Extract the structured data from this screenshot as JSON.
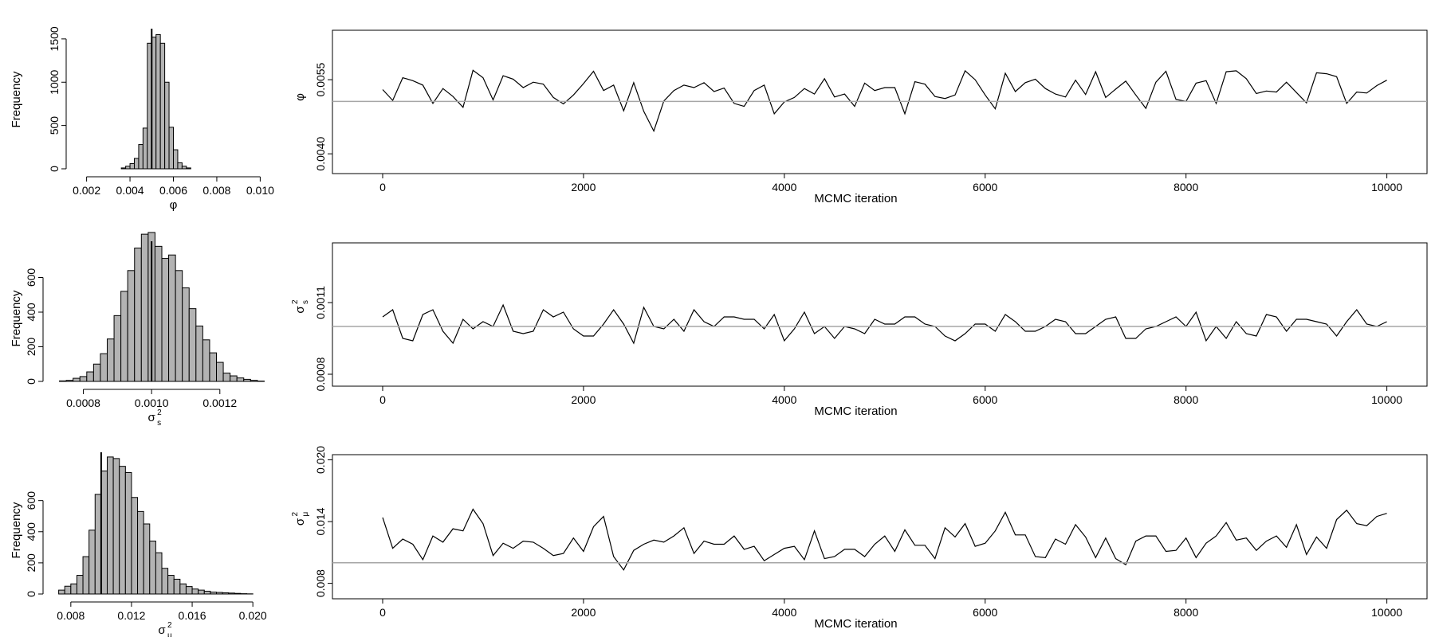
{
  "chart_data": [
    {
      "type": "bar",
      "kind": "histogram",
      "xlabel": "φ",
      "ylabel": "Frequency",
      "xlim": [
        0.0015,
        0.0105
      ],
      "ylim": [
        0,
        1600
      ],
      "xticks": [
        0.002,
        0.004,
        0.006,
        0.008,
        0.01
      ],
      "xtick_labels": [
        "0.002",
        "0.004",
        "0.006",
        "0.008",
        "0.010"
      ],
      "yticks": [
        0,
        500,
        1000,
        1500
      ],
      "ytick_labels": [
        "0",
        "500",
        "1000",
        "1500"
      ],
      "bin_edges": [
        0.0036,
        0.0038,
        0.004,
        0.0042,
        0.0044,
        0.0046,
        0.0048,
        0.005,
        0.0052,
        0.0054,
        0.0056,
        0.0058,
        0.006,
        0.0062,
        0.0064,
        0.0066,
        0.0068
      ],
      "counts": [
        10,
        30,
        60,
        120,
        280,
        470,
        1450,
        1520,
        1550,
        1450,
        1000,
        480,
        220,
        70,
        30,
        10
      ],
      "true_value": 0.005
    },
    {
      "type": "line",
      "kind": "trace",
      "xlabel": "MCMC iteration",
      "ylabel": "φ",
      "xlim": [
        -500,
        10400
      ],
      "ylim": [
        0.0036,
        0.0065
      ],
      "xticks": [
        0,
        2000,
        4000,
        6000,
        8000,
        10000
      ],
      "xtick_labels": [
        "0",
        "2000",
        "4000",
        "6000",
        "8000",
        "10000"
      ],
      "yticks": [
        0.004,
        0.0055
      ],
      "ytick_labels": [
        "0.0040",
        "0.0055"
      ],
      "x_step": 100,
      "y": [
        0.0053,
        0.00508,
        0.00554,
        0.00548,
        0.00539,
        0.00502,
        0.00532,
        0.00516,
        0.00494,
        0.00569,
        0.00554,
        0.00509,
        0.00558,
        0.00551,
        0.00534,
        0.00545,
        0.00541,
        0.00514,
        0.00501,
        0.00519,
        0.00542,
        0.00567,
        0.00528,
        0.00539,
        0.00487,
        0.00544,
        0.00486,
        0.00446,
        0.00507,
        0.00528,
        0.00539,
        0.00534,
        0.00544,
        0.00526,
        0.00533,
        0.00502,
        0.00496,
        0.00528,
        0.00539,
        0.00481,
        0.00505,
        0.00514,
        0.00532,
        0.00521,
        0.00552,
        0.00515,
        0.00521,
        0.00496,
        0.00543,
        0.00528,
        0.00534,
        0.00534,
        0.00481,
        0.00546,
        0.00541,
        0.00516,
        0.00512,
        0.00519,
        0.00568,
        0.0055,
        0.00519,
        0.00491,
        0.00563,
        0.00526,
        0.00544,
        0.00551,
        0.00532,
        0.00521,
        0.00515,
        0.00549,
        0.0052,
        0.00566,
        0.00514,
        0.00531,
        0.00547,
        0.00519,
        0.00492,
        0.00545,
        0.00567,
        0.0051,
        0.00506,
        0.00543,
        0.00548,
        0.00502,
        0.00566,
        0.00568,
        0.00552,
        0.00522,
        0.00527,
        0.00525,
        0.00545,
        0.00524,
        0.00503,
        0.00564,
        0.00562,
        0.00556,
        0.00502,
        0.00525,
        0.00523,
        0.00538,
        0.00549
      ],
      "reference_line": 0.00506
    },
    {
      "type": "bar",
      "kind": "histogram",
      "xlabel": "σ",
      "xlabel_sub": "s",
      "xlabel_sup": "2",
      "ylabel": "Frequency",
      "xlim": [
        0.00071,
        0.00135
      ],
      "ylim": [
        0,
        800
      ],
      "xticks": [
        0.0008,
        0.001,
        0.0012
      ],
      "xtick_labels": [
        "0.0008",
        "0.0010",
        "0.0012"
      ],
      "yticks": [
        0,
        200,
        400,
        600
      ],
      "ytick_labels": [
        "0",
        "200",
        "400",
        "600"
      ],
      "bin_edges": [
        0.00073,
        0.00075,
        0.00077,
        0.00079,
        0.00081,
        0.00083,
        0.00085,
        0.00087,
        0.00089,
        0.00091,
        0.00093,
        0.00095,
        0.00097,
        0.00099,
        0.00101,
        0.00103,
        0.00105,
        0.00107,
        0.00109,
        0.00111,
        0.00113,
        0.00115,
        0.00117,
        0.00119,
        0.00121,
        0.00123,
        0.00125,
        0.00127,
        0.00129,
        0.00131,
        0.00133
      ],
      "counts": [
        3,
        6,
        18,
        28,
        55,
        100,
        160,
        245,
        380,
        520,
        640,
        770,
        850,
        860,
        780,
        710,
        730,
        640,
        540,
        420,
        320,
        240,
        165,
        110,
        48,
        32,
        20,
        12,
        6,
        2
      ],
      "true_value": 0.001
    },
    {
      "type": "line",
      "kind": "trace",
      "xlabel": "MCMC iteration",
      "ylabel": "σ",
      "ylabel_sub": "s",
      "ylabel_sup": "2",
      "xlim": [
        -500,
        10400
      ],
      "ylim": [
        0.00075,
        0.00135
      ],
      "xticks": [
        0,
        2000,
        4000,
        6000,
        8000,
        10000
      ],
      "xtick_labels": [
        "0",
        "2000",
        "4000",
        "6000",
        "8000",
        "10000"
      ],
      "yticks": [
        0.0008,
        0.0011
      ],
      "ytick_labels": [
        "0.0008",
        "0.0011"
      ],
      "x_step": 100,
      "y": [
        0.00104,
        0.00107,
        0.00095,
        0.00094,
        0.00105,
        0.00107,
        0.00098,
        0.00093,
        0.00103,
        0.00099,
        0.00102,
        0.001,
        0.00109,
        0.00098,
        0.00097,
        0.00098,
        0.00107,
        0.00104,
        0.00106,
        0.00099,
        0.00096,
        0.00096,
        0.00101,
        0.00107,
        0.00101,
        0.00093,
        0.00108,
        0.001,
        0.00099,
        0.00103,
        0.00098,
        0.00107,
        0.00102,
        0.001,
        0.00104,
        0.00104,
        0.00103,
        0.00103,
        0.00099,
        0.00105,
        0.00094,
        0.00099,
        0.00106,
        0.00097,
        0.001,
        0.00095,
        0.001,
        0.00099,
        0.00097,
        0.00103,
        0.00101,
        0.00101,
        0.00104,
        0.00104,
        0.00101,
        0.001,
        0.00096,
        0.00094,
        0.00097,
        0.00101,
        0.00101,
        0.00098,
        0.00105,
        0.00102,
        0.00098,
        0.00098,
        0.001,
        0.00103,
        0.00102,
        0.00097,
        0.00097,
        0.001,
        0.00103,
        0.00104,
        0.00095,
        0.00095,
        0.00099,
        0.001,
        0.00102,
        0.00104,
        0.001,
        0.00106,
        0.00094,
        0.001,
        0.00095,
        0.00102,
        0.00097,
        0.00096,
        0.00105,
        0.00104,
        0.00098,
        0.00103,
        0.00103,
        0.00102,
        0.00101,
        0.00096,
        0.00102,
        0.00107,
        0.00101,
        0.001,
        0.00102
      ],
      "reference_line": 0.001
    },
    {
      "type": "bar",
      "kind": "histogram",
      "xlabel": "σ",
      "xlabel_sub": "μ",
      "xlabel_sup": "2",
      "ylabel": "Frequency",
      "xlim": [
        0.0068,
        0.0212
      ],
      "ylim": [
        0,
        900
      ],
      "xticks": [
        0.008,
        0.012,
        0.016,
        0.02
      ],
      "xtick_labels": [
        "0.008",
        "0.012",
        "0.016",
        "0.020"
      ],
      "yticks": [
        0,
        200,
        400,
        600
      ],
      "ytick_labels": [
        "0",
        "200",
        "400",
        "600"
      ],
      "bin_edges": [
        0.0072,
        0.0076,
        0.008,
        0.0084,
        0.0088,
        0.0092,
        0.0096,
        0.01,
        0.0104,
        0.0108,
        0.0112,
        0.0116,
        0.012,
        0.0124,
        0.0128,
        0.0132,
        0.0136,
        0.014,
        0.0144,
        0.0148,
        0.0152,
        0.0156,
        0.016,
        0.0164,
        0.0168,
        0.0172,
        0.0176,
        0.018,
        0.0184,
        0.0188,
        0.0192,
        0.0196,
        0.02
      ],
      "counts": [
        25,
        50,
        65,
        120,
        240,
        410,
        640,
        790,
        880,
        870,
        820,
        780,
        620,
        530,
        450,
        340,
        265,
        165,
        120,
        95,
        65,
        48,
        32,
        25,
        18,
        12,
        10,
        8,
        6,
        4,
        2,
        1
      ],
      "true_value": 0.01
    },
    {
      "type": "line",
      "kind": "trace",
      "xlabel": "MCMC iteration",
      "ylabel": "σ",
      "ylabel_sub": "μ",
      "ylabel_sup": "2",
      "xlim": [
        -500,
        10400
      ],
      "ylim": [
        0.0065,
        0.0205
      ],
      "xticks": [
        0,
        2000,
        4000,
        6000,
        8000,
        10000
      ],
      "xtick_labels": [
        "0",
        "2000",
        "4000",
        "6000",
        "8000",
        "10000"
      ],
      "yticks": [
        0.008,
        0.014,
        0.02
      ],
      "ytick_labels": [
        "0.008",
        "0.014",
        "0.020"
      ],
      "x_step": 100,
      "y": [
        0.0144,
        0.0114,
        0.0123,
        0.0118,
        0.0103,
        0.0126,
        0.012,
        0.0133,
        0.0131,
        0.0152,
        0.0138,
        0.0107,
        0.0119,
        0.0114,
        0.0121,
        0.012,
        0.0114,
        0.0107,
        0.0109,
        0.0124,
        0.0111,
        0.0135,
        0.0145,
        0.0106,
        0.0093,
        0.0112,
        0.0118,
        0.0122,
        0.012,
        0.0126,
        0.0134,
        0.0109,
        0.0121,
        0.0118,
        0.0118,
        0.0126,
        0.0113,
        0.0116,
        0.0102,
        0.0108,
        0.0114,
        0.0116,
        0.0103,
        0.0131,
        0.0104,
        0.0106,
        0.0113,
        0.0113,
        0.0106,
        0.0118,
        0.0126,
        0.0111,
        0.0132,
        0.0117,
        0.0117,
        0.0104,
        0.0134,
        0.0125,
        0.0138,
        0.0116,
        0.0119,
        0.0131,
        0.0149,
        0.0127,
        0.0127,
        0.0106,
        0.0105,
        0.0123,
        0.0118,
        0.0137,
        0.0125,
        0.0105,
        0.0124,
        0.0104,
        0.0098,
        0.0121,
        0.0126,
        0.0126,
        0.0111,
        0.0112,
        0.0124,
        0.0105,
        0.0119,
        0.0126,
        0.0139,
        0.0122,
        0.0124,
        0.0112,
        0.0121,
        0.0126,
        0.0115,
        0.0137,
        0.0108,
        0.0125,
        0.0114,
        0.0142,
        0.0151,
        0.0138,
        0.0136,
        0.0145,
        0.0148
      ],
      "reference_line": 0.01
    }
  ]
}
